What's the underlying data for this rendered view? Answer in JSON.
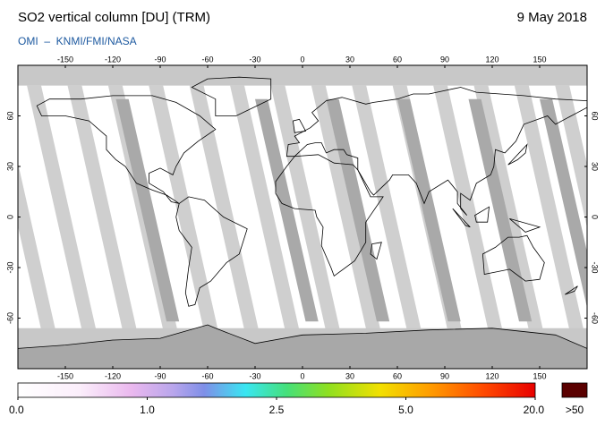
{
  "header": {
    "title": "SO2 vertical column [DU] (TRM)",
    "date": "9 May 2018",
    "source": "OMI  –  KNMI/FMI/NASA"
  },
  "map": {
    "xlim": [
      -180,
      180
    ],
    "ylim": [
      -90,
      90
    ],
    "xticks": [
      -150,
      -120,
      -90,
      -60,
      -30,
      0,
      30,
      60,
      90,
      120,
      150
    ],
    "yticks": [
      60,
      30,
      0,
      -30,
      -60
    ]
  },
  "colorbar": {
    "ticks": [
      {
        "value": 0,
        "label": "0.0"
      },
      {
        "value": 1,
        "label": "1.0"
      },
      {
        "value": 2.5,
        "label": "2.5"
      },
      {
        "value": 5,
        "label": "5.0"
      },
      {
        "value": 20,
        "label": "20.0"
      }
    ],
    "overflow_label": ">50"
  }
}
